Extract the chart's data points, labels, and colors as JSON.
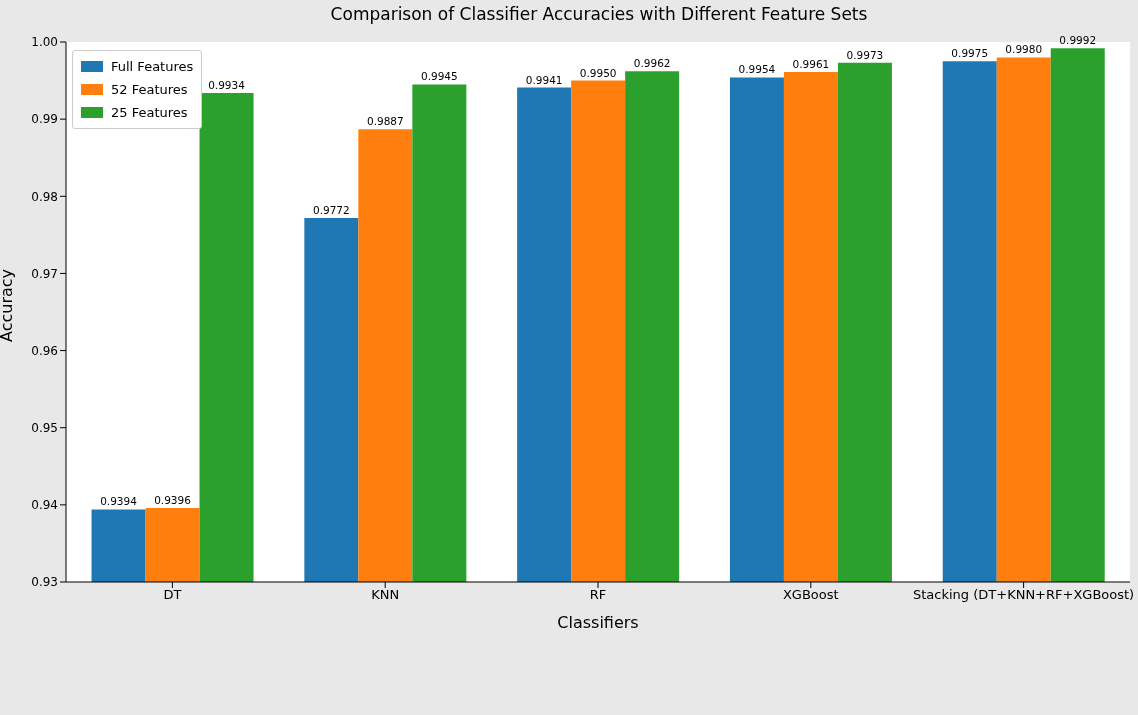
{
  "chart_data": {
    "type": "bar",
    "title": "Comparison of Classifier Accuracies with Different Feature Sets",
    "xlabel": "Classifiers",
    "ylabel": "Accuracy",
    "categories": [
      "DT",
      "KNN",
      "RF",
      "XGBoost",
      "Stacking (DT+KNN+RF+XGBoost)"
    ],
    "series": [
      {
        "name": "Full Features",
        "color": "#1f77b4",
        "values": [
          0.9394,
          0.9772,
          0.9941,
          0.9954,
          0.9975
        ],
        "value_labels": [
          "0.9394",
          "0.9772",
          "0.9941",
          "0.9954",
          "0.9975"
        ]
      },
      {
        "name": "52 Features",
        "color": "#ff7f0e",
        "values": [
          0.9396,
          0.9887,
          0.995,
          0.9961,
          0.998
        ],
        "value_labels": [
          "0.9396",
          "0.9887",
          "0.9950",
          "0.9961",
          "0.9980"
        ]
      },
      {
        "name": "25 Features",
        "color": "#2ca02c",
        "values": [
          0.9934,
          0.9945,
          0.9962,
          0.9973,
          0.9992
        ],
        "value_labels": [
          "0.9934",
          "0.9945",
          "0.9962",
          "0.9973",
          "0.9992"
        ]
      }
    ],
    "ylim": [
      0.93,
      1.0
    ],
    "yticks": [
      0.93,
      0.94,
      0.95,
      0.96,
      0.97,
      0.98,
      0.99,
      {
        "value": 1.0,
        "label": "1.00"
      }
    ],
    "grid": false,
    "legend": "top left"
  }
}
